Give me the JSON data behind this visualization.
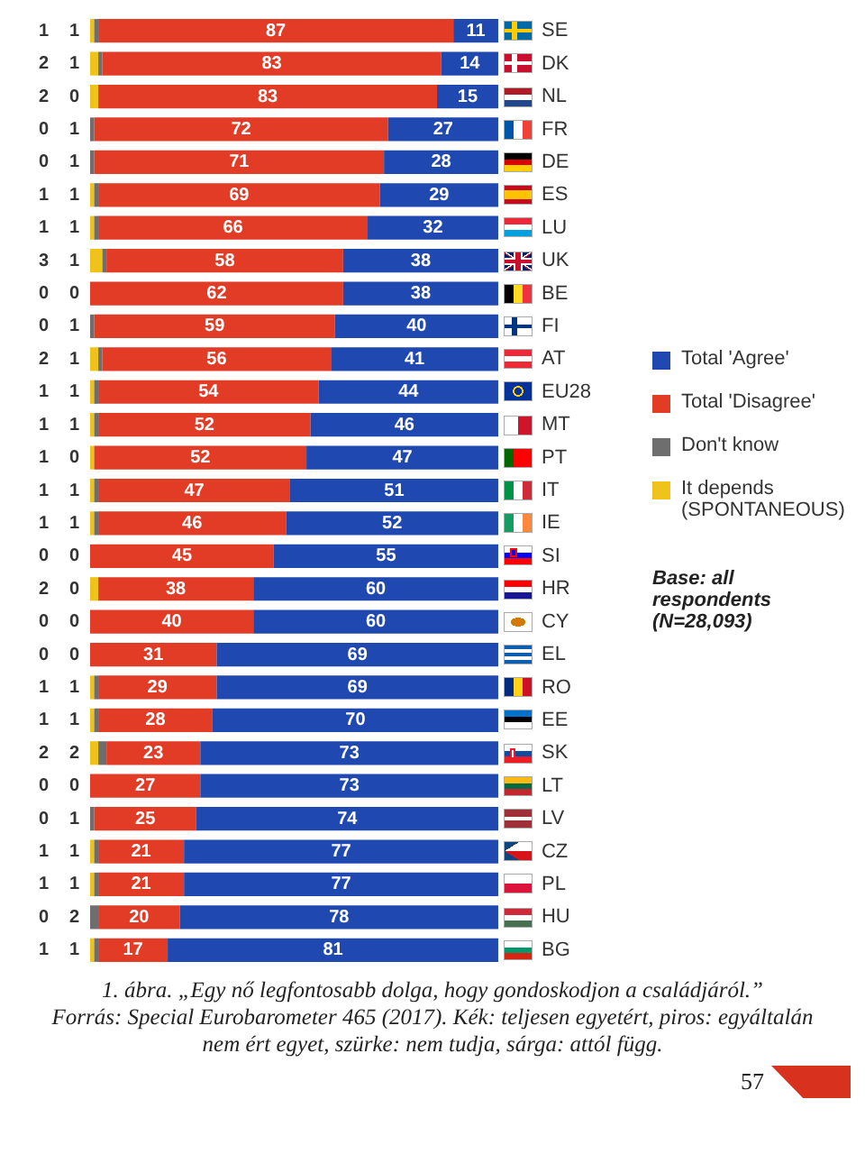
{
  "chart_data": {
    "type": "bar",
    "orientation": "horizontal",
    "stacked": true,
    "data_labels": true,
    "legend": "right",
    "tick_labels": "y",
    "title": "1. ábra. „Egy nő legfontosabb dolga, hogy gondoskodjon a családjáról.”",
    "annotations": [
      "Base: all respondents (N=28,093)",
      "Forrás: Special Eurobarometer 465 (2017). Kék: teljesen egyetért, piros: egyáltalán nem ért egyet, szürke: nem tudja, sárga: attól függ.",
      "57"
    ],
    "categories": [
      "SE",
      "DK",
      "NL",
      "FR",
      "DE",
      "ES",
      "LU",
      "UK",
      "BE",
      "FI",
      "AT",
      "EU28",
      "MT",
      "PT",
      "IT",
      "IE",
      "SI",
      "HR",
      "CY",
      "EL",
      "RO",
      "EE",
      "SK",
      "LT",
      "LV",
      "CZ",
      "PL",
      "HU",
      "BG"
    ],
    "series": [
      {
        "name": "Total 'Agree'",
        "color": "#1f48b0",
        "values": [
          11,
          14,
          15,
          27,
          28,
          29,
          32,
          38,
          38,
          40,
          41,
          44,
          46,
          47,
          51,
          52,
          55,
          60,
          60,
          69,
          69,
          70,
          73,
          73,
          74,
          77,
          77,
          78,
          81
        ]
      },
      {
        "name": "Total 'Disagree'",
        "color": "#e23b26",
        "values": [
          87,
          83,
          83,
          72,
          71,
          69,
          66,
          58,
          62,
          59,
          56,
          54,
          52,
          52,
          47,
          46,
          45,
          38,
          40,
          31,
          29,
          28,
          23,
          27,
          25,
          21,
          21,
          20,
          17
        ]
      },
      {
        "name": "Don't know",
        "color": "#6e6e6e",
        "values": [
          1,
          1,
          0,
          1,
          1,
          1,
          1,
          1,
          0,
          1,
          1,
          1,
          1,
          0,
          1,
          1,
          0,
          0,
          0,
          0,
          1,
          1,
          2,
          0,
          1,
          1,
          1,
          2,
          1
        ]
      },
      {
        "name": "It depends (SPONTANEOUS)",
        "color": "#f0c31a",
        "values": [
          1,
          2,
          2,
          0,
          0,
          1,
          1,
          3,
          0,
          0,
          2,
          1,
          1,
          1,
          1,
          1,
          0,
          2,
          0,
          0,
          1,
          1,
          2,
          0,
          0,
          1,
          1,
          0,
          1
        ]
      }
    ]
  }
}
